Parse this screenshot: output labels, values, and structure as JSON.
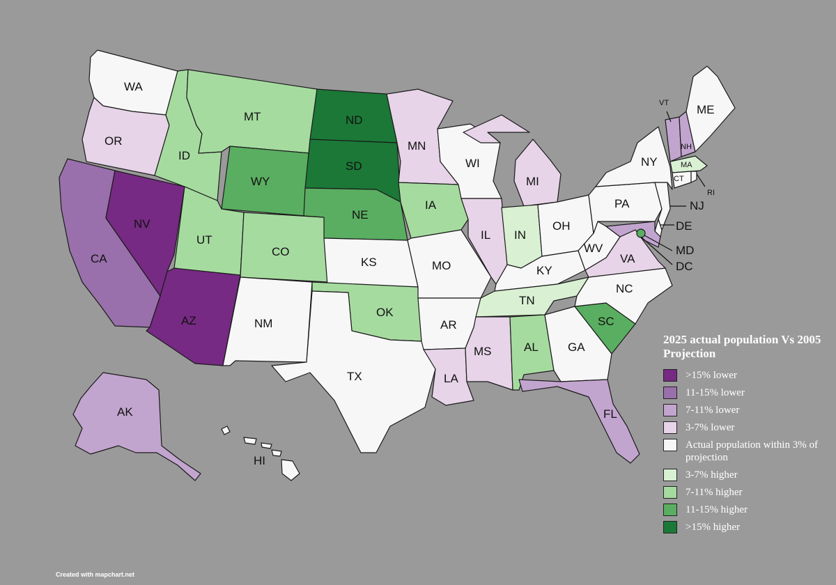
{
  "legend": {
    "title": "2025 actual population Vs 2005 Projection",
    "items": [
      {
        "label": ">15% lower",
        "color": "#762a83"
      },
      {
        "label": "11-15% lower",
        "color": "#9970ab"
      },
      {
        "label": "7-11% lower",
        "color": "#c2a5cf"
      },
      {
        "label": "3-7% lower",
        "color": "#e7d4e8"
      },
      {
        "label": "Actual population within 3% of projection",
        "color": "#f7f7f7"
      },
      {
        "label": "3-7% higher",
        "color": "#d9f0d3"
      },
      {
        "label": "7-11% higher",
        "color": "#a6dba0"
      },
      {
        "label": "11-15% higher",
        "color": "#5aae61"
      },
      {
        "label": ">15% higher",
        "color": "#1b7837"
      }
    ]
  },
  "states": {
    "WA": {
      "label": "WA",
      "color": "#f7f7f7"
    },
    "OR": {
      "label": "OR",
      "color": "#e7d4e8"
    },
    "CA": {
      "label": "CA",
      "color": "#9970ab"
    },
    "NV": {
      "label": "NV",
      "color": "#762a83"
    },
    "AZ": {
      "label": "AZ",
      "color": "#762a83"
    },
    "ID": {
      "label": "ID",
      "color": "#a6dba0"
    },
    "MT": {
      "label": "MT",
      "color": "#a6dba0"
    },
    "WY": {
      "label": "WY",
      "color": "#5aae61"
    },
    "UT": {
      "label": "UT",
      "color": "#a6dba0"
    },
    "CO": {
      "label": "CO",
      "color": "#a6dba0"
    },
    "NM": {
      "label": "NM",
      "color": "#f7f7f7"
    },
    "ND": {
      "label": "ND",
      "color": "#1b7837"
    },
    "SD": {
      "label": "SD",
      "color": "#1b7837"
    },
    "NE": {
      "label": "NE",
      "color": "#5aae61"
    },
    "KS": {
      "label": "KS",
      "color": "#f7f7f7"
    },
    "OK": {
      "label": "OK",
      "color": "#a6dba0"
    },
    "TX": {
      "label": "TX",
      "color": "#f7f7f7"
    },
    "MN": {
      "label": "MN",
      "color": "#e7d4e8"
    },
    "IA": {
      "label": "IA",
      "color": "#a6dba0"
    },
    "MO": {
      "label": "MO",
      "color": "#f7f7f7"
    },
    "AR": {
      "label": "AR",
      "color": "#f7f7f7"
    },
    "LA": {
      "label": "LA",
      "color": "#e7d4e8"
    },
    "WI": {
      "label": "WI",
      "color": "#f7f7f7"
    },
    "IL": {
      "label": "IL",
      "color": "#e7d4e8"
    },
    "MI": {
      "label": "MI",
      "color": "#e7d4e8"
    },
    "IN": {
      "label": "IN",
      "color": "#d9f0d3"
    },
    "OH": {
      "label": "OH",
      "color": "#f7f7f7"
    },
    "KY": {
      "label": "KY",
      "color": "#f7f7f7"
    },
    "TN": {
      "label": "TN",
      "color": "#d9f0d3"
    },
    "MS": {
      "label": "MS",
      "color": "#e7d4e8"
    },
    "AL": {
      "label": "AL",
      "color": "#a6dba0"
    },
    "GA": {
      "label": "GA",
      "color": "#f7f7f7"
    },
    "FL": {
      "label": "FL",
      "color": "#c2a5cf"
    },
    "SC": {
      "label": "SC",
      "color": "#5aae61"
    },
    "NC": {
      "label": "NC",
      "color": "#f7f7f7"
    },
    "VA": {
      "label": "VA",
      "color": "#e7d4e8"
    },
    "WV": {
      "label": "WV",
      "color": "#f7f7f7"
    },
    "PA": {
      "label": "PA",
      "color": "#f7f7f7"
    },
    "NY": {
      "label": "NY",
      "color": "#f7f7f7"
    },
    "NJ": {
      "label": "NJ",
      "color": "#f7f7f7"
    },
    "DE": {
      "label": "DE",
      "color": "#f7f7f7"
    },
    "MD": {
      "label": "MD",
      "color": "#c2a5cf"
    },
    "DC": {
      "label": "DC",
      "color": "#5aae61"
    },
    "CT": {
      "label": "CT",
      "color": "#f7f7f7"
    },
    "RI": {
      "label": "RI",
      "color": "#f7f7f7"
    },
    "MA": {
      "label": "MA",
      "color": "#d9f0d3"
    },
    "VT": {
      "label": "VT",
      "color": "#c2a5cf"
    },
    "NH": {
      "label": "NH",
      "color": "#c2a5cf"
    },
    "ME": {
      "label": "ME",
      "color": "#f7f7f7"
    },
    "AK": {
      "label": "AK",
      "color": "#c2a5cf"
    },
    "HI": {
      "label": "HI",
      "color": "#f7f7f7"
    }
  },
  "credit": "Created with mapchart.net"
}
